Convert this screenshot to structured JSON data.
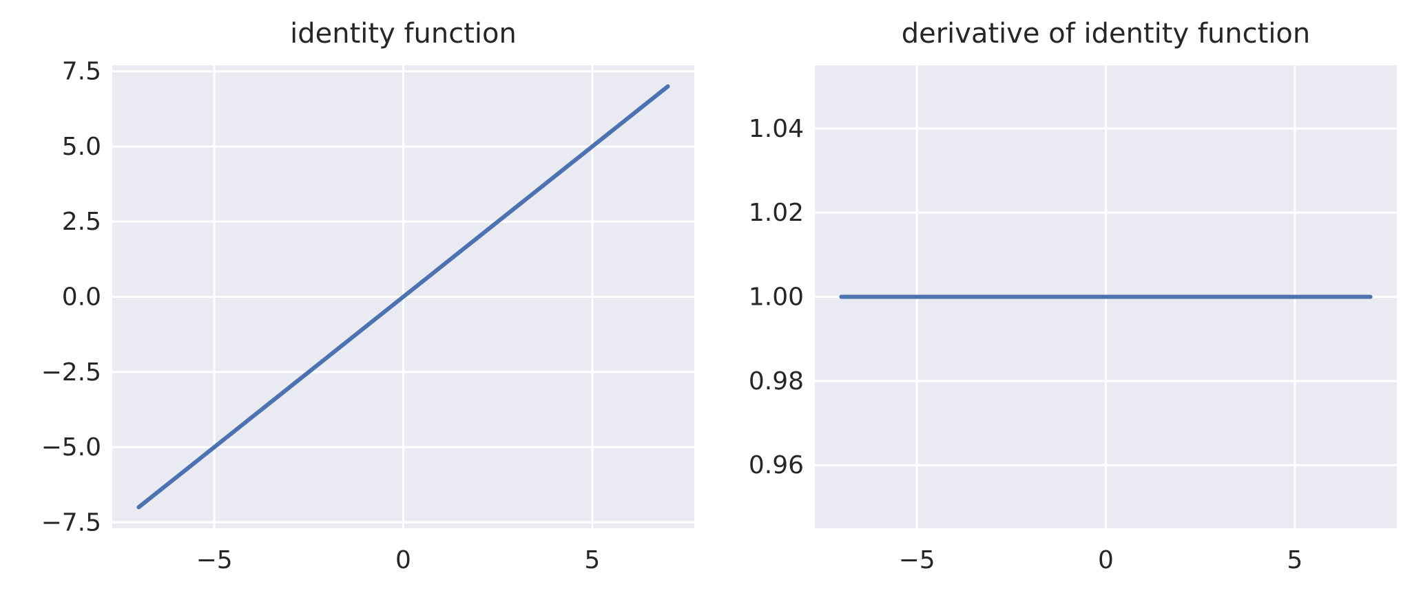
{
  "chart_data": [
    {
      "type": "line",
      "title": "identity function",
      "xlabel": "",
      "ylabel": "",
      "xlim": [
        -7.7,
        7.7
      ],
      "ylim": [
        -7.7,
        7.7
      ],
      "xticks": [
        -5,
        0,
        5
      ],
      "xtick_labels": [
        "−5",
        "0",
        "5"
      ],
      "yticks": [
        7.5,
        5.0,
        2.5,
        0.0,
        -2.5,
        -5.0,
        -7.5
      ],
      "ytick_labels": [
        "7.5",
        "5.0",
        "2.5",
        "0.0",
        "−2.5",
        "−5.0",
        "−7.5"
      ],
      "grid": true,
      "series": [
        {
          "color": "#4c72b0",
          "x": [
            -7,
            7
          ],
          "y": [
            -7,
            7
          ]
        }
      ]
    },
    {
      "type": "line",
      "title": "derivative of identity function",
      "xlabel": "",
      "ylabel": "",
      "xlim": [
        -7.7,
        7.7
      ],
      "ylim": [
        0.945,
        1.055
      ],
      "xticks": [
        -5,
        0,
        5
      ],
      "xtick_labels": [
        "−5",
        "0",
        "5"
      ],
      "yticks": [
        1.04,
        1.02,
        1.0,
        0.98,
        0.96
      ],
      "ytick_labels": [
        "1.04",
        "1.02",
        "1.00",
        "0.98",
        "0.96"
      ],
      "grid": true,
      "series": [
        {
          "color": "#4c72b0",
          "x": [
            -7,
            7
          ],
          "y": [
            1,
            1
          ]
        }
      ]
    }
  ]
}
